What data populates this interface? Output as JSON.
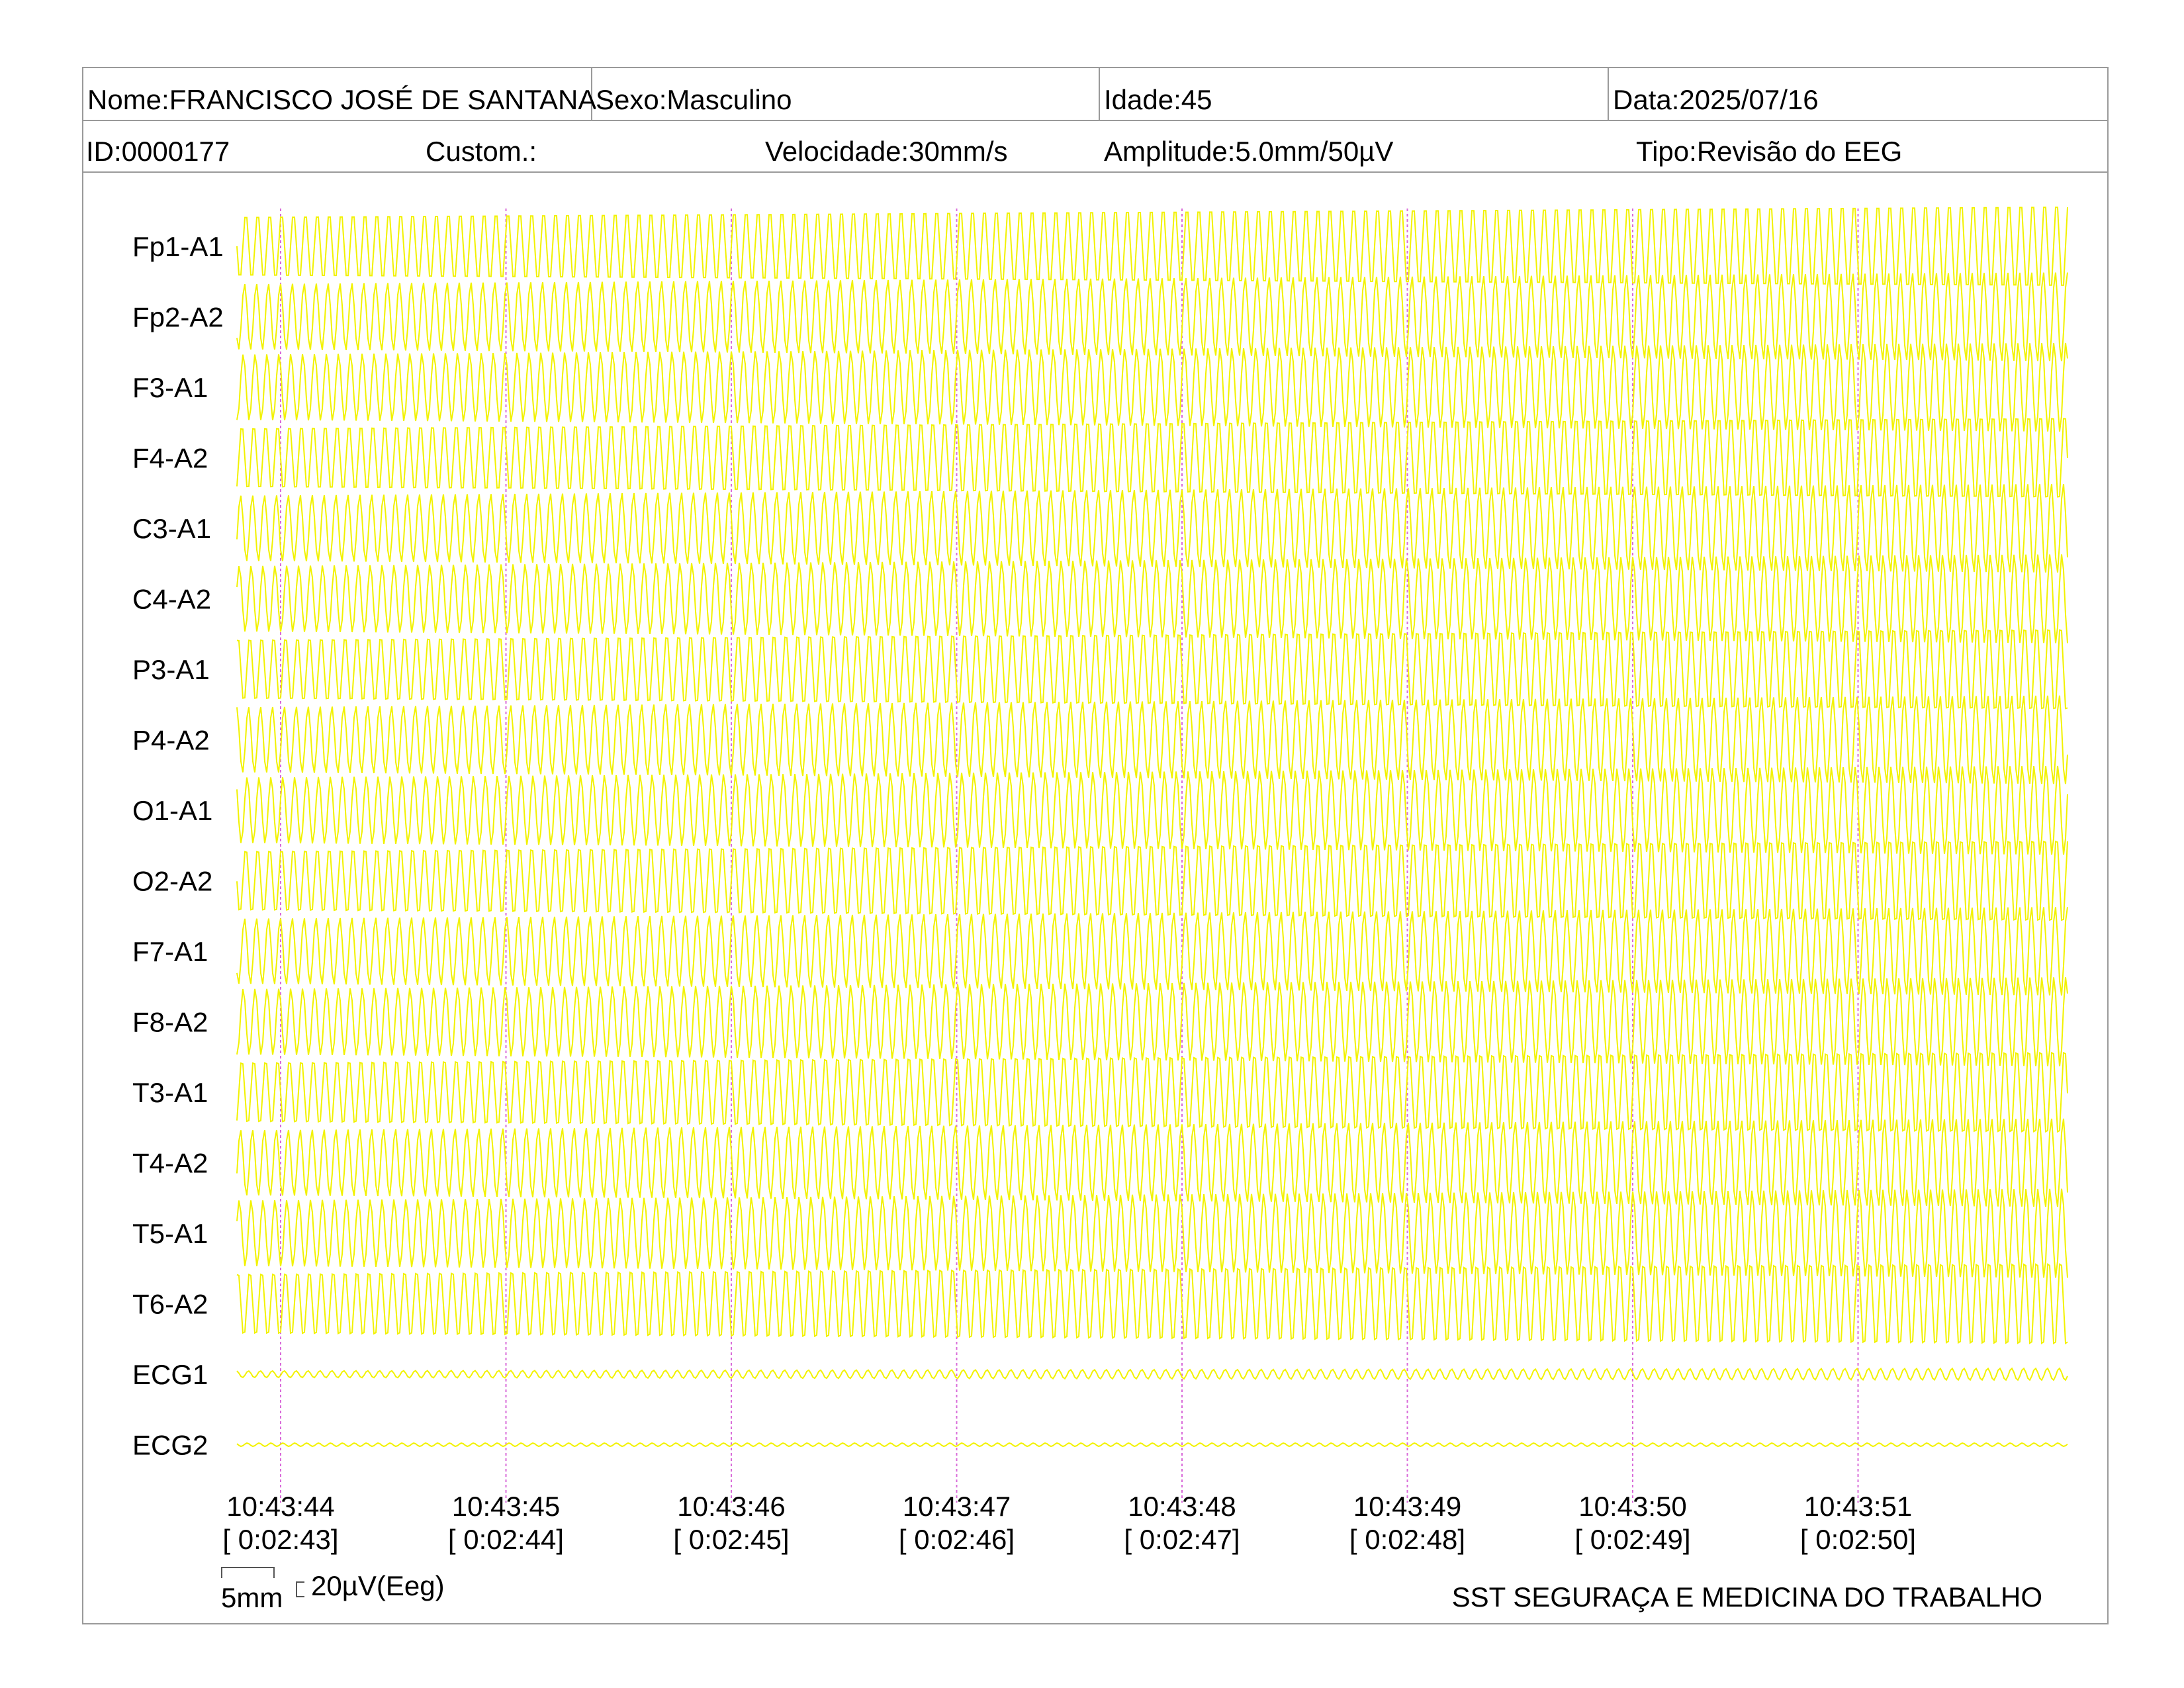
{
  "header": {
    "name": "Nome:FRANCISCO JOSÉ DE SANTANA",
    "sex": "Sexo:Masculino",
    "age": "Idade:45",
    "date": "Data:2025/07/16",
    "id": "ID:0000177",
    "custom": "Custom.:",
    "speed": "Velocidade:30mm/s",
    "amplitude": "Amplitude:5.0mm/50µV",
    "type": "Tipo:Revisão do EEG"
  },
  "scale": {
    "time_label": "5mm",
    "amp_label": "20µV(Eeg)"
  },
  "footer": {
    "org": "SST SEGURAÇA E MEDICINA DO TRABALHO"
  },
  "colors": {
    "trace": "#f2f200",
    "marker": "#d96bd9",
    "border": "#9a9a9a"
  },
  "chart_data": {
    "type": "line",
    "channels": [
      "Fp1-A1",
      "Fp2-A2",
      "F3-A1",
      "F4-A2",
      "C3-A1",
      "C4-A2",
      "P3-A1",
      "P4-A2",
      "O1-A1",
      "O2-A2",
      "F7-A1",
      "F8-A2",
      "T3-A1",
      "T4-A2",
      "T5-A1",
      "T6-A2",
      "ECG1",
      "ECG2"
    ],
    "time_ticks": [
      {
        "clock": "10:43:44",
        "elapsed": "[ 0:02:43]"
      },
      {
        "clock": "10:43:45",
        "elapsed": "[ 0:02:44]"
      },
      {
        "clock": "10:43:46",
        "elapsed": "[ 0:02:45]"
      },
      {
        "clock": "10:43:47",
        "elapsed": "[ 0:02:46]"
      },
      {
        "clock": "10:43:48",
        "elapsed": "[ 0:02:47]"
      },
      {
        "clock": "10:43:49",
        "elapsed": "[ 0:02:48]"
      },
      {
        "clock": "10:43:50",
        "elapsed": "[ 0:02:49]"
      },
      {
        "clock": "10:43:51",
        "elapsed": "[ 0:02:50]"
      }
    ],
    "speed_mm_per_s": 30,
    "amplitude_mm_per_50uV": 5.0
  }
}
